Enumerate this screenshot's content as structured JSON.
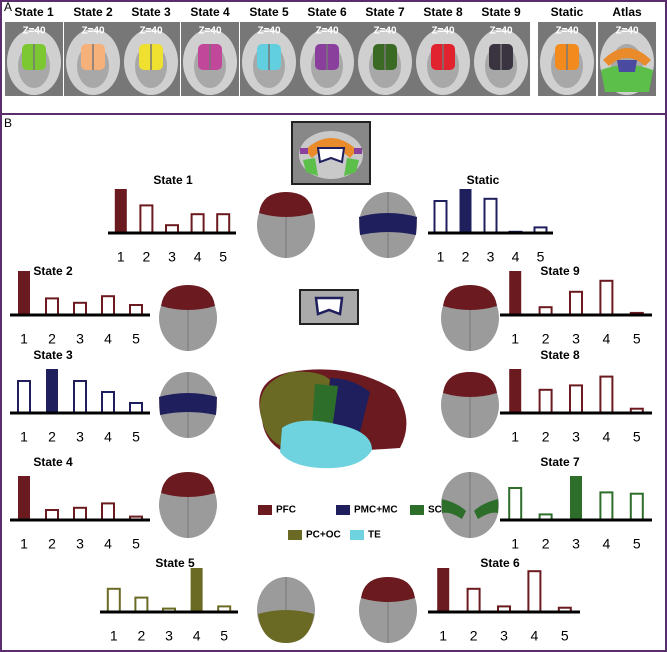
{
  "panel_a": {
    "label": "A",
    "images": [
      {
        "title": "State 1",
        "slice": "Z=40",
        "color": "#7cc832"
      },
      {
        "title": "State 2",
        "slice": "Z=40",
        "color": "#f6b07a"
      },
      {
        "title": "State 3",
        "slice": "Z=40",
        "color": "#f0e030"
      },
      {
        "title": "State 4",
        "slice": "Z=40",
        "color": "#c0479a"
      },
      {
        "title": "State 5",
        "slice": "Z=40",
        "color": "#62cfe0"
      },
      {
        "title": "State 6",
        "slice": "Z=40",
        "color": "#8a3f9c"
      },
      {
        "title": "State 7",
        "slice": "Z=40",
        "color": "#3b6a25"
      },
      {
        "title": "State 8",
        "slice": "Z=40",
        "color": "#e0232f"
      },
      {
        "title": "State 9",
        "slice": "Z=40",
        "color": "#3a3440"
      },
      {
        "title": "Static",
        "slice": "Z=40",
        "color": "#f28a1e"
      },
      {
        "title": "Atlas",
        "slice": "Z=40",
        "color": "#5cbf4a"
      }
    ]
  },
  "panel_b": {
    "label": "B",
    "legend": [
      {
        "label": "PFC",
        "color": "#6b1a1f"
      },
      {
        "label": "PMC+MC",
        "color": "#1f1f5e"
      },
      {
        "label": "SC",
        "color": "#2e6e2b"
      },
      {
        "label": "PC+OC",
        "color": "#6b6a24"
      },
      {
        "label": "TE",
        "color": "#6fd3df"
      }
    ]
  },
  "chart_data": [
    {
      "type": "bar",
      "title": "State 1",
      "categories": [
        "1",
        "2",
        "3",
        "4",
        "5"
      ],
      "values": [
        1,
        0.65,
        0.2,
        0.45,
        0.45
      ],
      "color": "#6b1a1f",
      "ylim": [
        0,
        1
      ]
    },
    {
      "type": "bar",
      "title": "Static",
      "categories": [
        "1",
        "2",
        "3",
        "4",
        "5"
      ],
      "values": [
        0.75,
        1,
        0.8,
        0.05,
        0.15
      ],
      "color": "#1f1f5e",
      "ylim": [
        0,
        1
      ]
    },
    {
      "type": "bar",
      "title": "State 2",
      "categories": [
        "1",
        "2",
        "3",
        "4",
        "5"
      ],
      "values": [
        1,
        0.4,
        0.3,
        0.45,
        0.25
      ],
      "color": "#6b1a1f",
      "ylim": [
        0,
        1
      ]
    },
    {
      "type": "bar",
      "title": "State 9",
      "categories": [
        "1",
        "2",
        "3",
        "4",
        "5"
      ],
      "values": [
        1,
        0.2,
        0.55,
        0.8,
        0.07
      ],
      "color": "#6b1a1f",
      "ylim": [
        0,
        1
      ]
    },
    {
      "type": "bar",
      "title": "State 3",
      "categories": [
        "1",
        "2",
        "3",
        "4",
        "5"
      ],
      "values": [
        0.75,
        1,
        0.75,
        0.5,
        0.25
      ],
      "color": "#1f1f5e",
      "ylim": [
        0,
        1
      ]
    },
    {
      "type": "bar",
      "title": "State 8",
      "categories": [
        "1",
        "2",
        "3",
        "4",
        "5"
      ],
      "values": [
        1,
        0.55,
        0.65,
        0.85,
        0.12
      ],
      "color": "#6b1a1f",
      "ylim": [
        0,
        1
      ]
    },
    {
      "type": "bar",
      "title": "State 4",
      "categories": [
        "1",
        "2",
        "3",
        "4",
        "5"
      ],
      "values": [
        1,
        0.25,
        0.3,
        0.4,
        0.1
      ],
      "color": "#6b1a1f",
      "ylim": [
        0,
        1
      ]
    },
    {
      "type": "bar",
      "title": "State 7",
      "categories": [
        "1",
        "2",
        "3",
        "4",
        "5"
      ],
      "values": [
        0.75,
        0.15,
        1,
        0.65,
        0.62
      ],
      "color": "#2e6e2b",
      "ylim": [
        0,
        1
      ]
    },
    {
      "type": "bar",
      "title": "State 5",
      "categories": [
        "1",
        "2",
        "3",
        "4",
        "5"
      ],
      "values": [
        0.55,
        0.35,
        0.1,
        1,
        0.15
      ],
      "color": "#6b6a24",
      "ylim": [
        0,
        1
      ]
    },
    {
      "type": "bar",
      "title": "State 6",
      "categories": [
        "1",
        "2",
        "3",
        "4",
        "5"
      ],
      "values": [
        1,
        0.55,
        0.15,
        0.95,
        0.12
      ],
      "color": "#6b1a1f",
      "ylim": [
        0,
        1
      ]
    }
  ]
}
